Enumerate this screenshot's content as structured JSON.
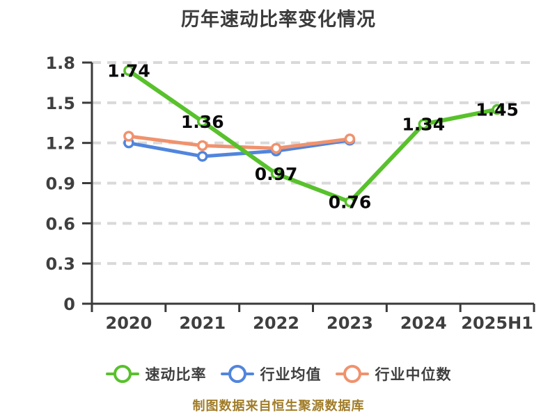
{
  "title": "历年速动比率变化情况",
  "footer": "制图数据来自恒生聚源数据库",
  "colors": {
    "background": "#ffffff",
    "title_text": "#3b3b3b",
    "axis": "#3a3a3a",
    "tick_label": "#3f3f3f",
    "grid": "#d9d9d9",
    "value_label": "#0a0a0a",
    "legend_text": "#3f3f3f",
    "footer_text": "#a07c28",
    "quick_ratio_line": "#58c12c",
    "industry_mean_line": "#5185dd",
    "industry_median_line": "#f0926d"
  },
  "chart_data": {
    "type": "line",
    "title": "历年速动比率变化情况",
    "categories": [
      "2020",
      "2021",
      "2022",
      "2023",
      "2024",
      "2025H1"
    ],
    "series": [
      {
        "key": "quick-ratio",
        "name": "速动比率",
        "color": "#58c12c",
        "values": [
          1.74,
          1.36,
          0.97,
          0.76,
          1.34,
          1.45
        ],
        "data_labels": [
          "1.74",
          "1.36",
          "0.97",
          "0.76",
          "1.34",
          "1.45"
        ]
      },
      {
        "key": "industry-mean",
        "name": "行业均值",
        "color": "#5185dd",
        "values": [
          1.2,
          1.1,
          1.14,
          1.22
        ],
        "data_labels": null
      },
      {
        "key": "industry-median",
        "name": "行业中位数",
        "color": "#f0926d",
        "values": [
          1.25,
          1.18,
          1.16,
          1.23
        ],
        "data_labels": null
      }
    ],
    "ylim": [
      0,
      1.8
    ],
    "yticks": [
      0,
      0.3,
      0.6,
      0.9,
      1.2,
      1.5,
      1.8
    ],
    "grid": "horizontal-dashed",
    "legend_position": "bottom",
    "marker": "white-filled-circle"
  }
}
